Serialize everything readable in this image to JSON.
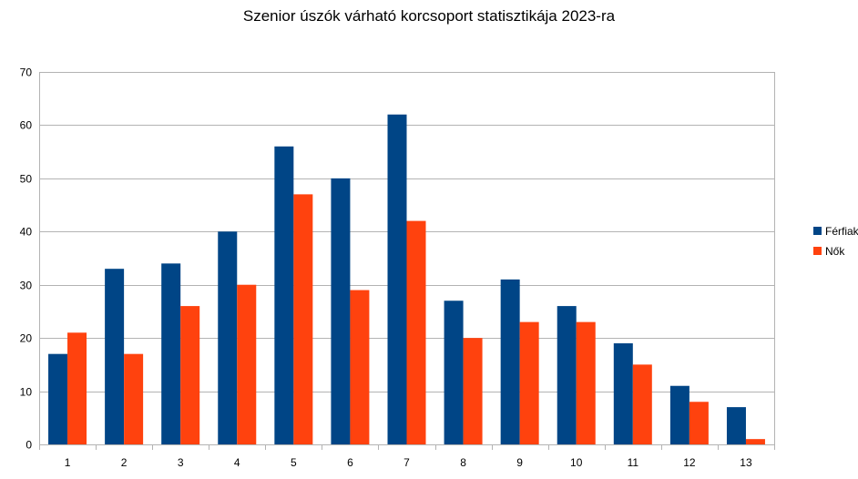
{
  "chart_data": {
    "type": "bar",
    "title": "Szenior úszók várható korcsoport statisztikája 2023-ra",
    "xlabel": "",
    "ylabel": "",
    "categories": [
      "1",
      "2",
      "3",
      "4",
      "5",
      "6",
      "7",
      "8",
      "9",
      "10",
      "11",
      "12",
      "13"
    ],
    "series": [
      {
        "name": "Férfiak",
        "color": "#004586",
        "values": [
          17,
          33,
          34,
          40,
          56,
          50,
          62,
          27,
          31,
          26,
          19,
          11,
          7
        ]
      },
      {
        "name": "Nők",
        "color": "#ff420e",
        "values": [
          21,
          17,
          26,
          30,
          47,
          29,
          42,
          20,
          23,
          23,
          15,
          8,
          1
        ]
      }
    ],
    "ylim": [
      0,
      70
    ],
    "yticks": [
      0,
      10,
      20,
      30,
      40,
      50,
      60,
      70
    ],
    "grid": true,
    "legend_position": "right"
  }
}
